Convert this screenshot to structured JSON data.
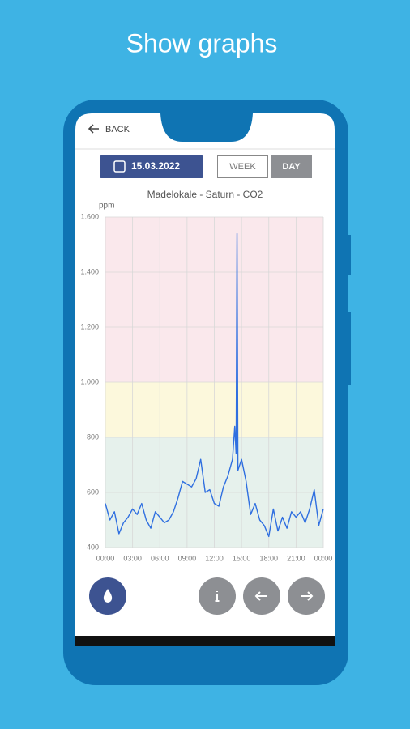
{
  "headline": "Show graphs",
  "app": {
    "back": "BACK",
    "date": "15.03.2022",
    "buttons": [
      "WEEK",
      "DAY"
    ]
  },
  "chart_data": {
    "type": "line",
    "title": "Madelokale - Saturn - CO2",
    "y_label": "ppm",
    "color": "#2f6fe0",
    "x": [
      0,
      0.5,
      1,
      1.5,
      2,
      2.5,
      3,
      3.5,
      4,
      4.5,
      5,
      5.5,
      6,
      6.5,
      7,
      7.5,
      8,
      8.5,
      9,
      9.5,
      10,
      10.5,
      11,
      11.5,
      12,
      12.5,
      13,
      13.5,
      14,
      14.25,
      14.4,
      14.5,
      14.6,
      15,
      15.5,
      16,
      16.5,
      17,
      17.5,
      18,
      18.5,
      19,
      19.5,
      20,
      20.5,
      21,
      21.5,
      22,
      22.5,
      23,
      23.5,
      24
    ],
    "values": [
      560,
      500,
      530,
      450,
      490,
      510,
      540,
      520,
      560,
      500,
      470,
      530,
      510,
      490,
      500,
      530,
      580,
      640,
      630,
      620,
      650,
      720,
      600,
      610,
      560,
      550,
      620,
      660,
      720,
      840,
      740,
      1540,
      680,
      720,
      640,
      520,
      560,
      500,
      480,
      440,
      540,
      460,
      510,
      470,
      530,
      510,
      530,
      490,
      540,
      610,
      480,
      540
    ],
    "xlim": [
      0,
      24
    ],
    "xticks": [
      {
        "value": 0,
        "label": "00:00"
      },
      {
        "value": 3,
        "label": "03:00"
      },
      {
        "value": 6,
        "label": "06:00"
      },
      {
        "value": 9,
        "label": "09:00"
      },
      {
        "value": 12,
        "label": "12:00"
      },
      {
        "value": 15,
        "label": "15:00"
      },
      {
        "value": 18,
        "label": "18:00"
      },
      {
        "value": 21,
        "label": "21:00"
      },
      {
        "value": 24,
        "label": "00:00"
      }
    ],
    "ylim": [
      400,
      1600
    ],
    "yticks": [
      400,
      600,
      800,
      {
        "value": 1000,
        "label": "1.000"
      },
      {
        "value": 1200,
        "label": "1.200"
      },
      {
        "value": 1400,
        "label": "1.400"
      },
      {
        "value": 1600,
        "label": "1.600"
      }
    ],
    "grid": true,
    "bands": [
      {
        "from": 400,
        "to": 800,
        "color": "#e6f1ec"
      },
      {
        "from": 800,
        "to": 1000,
        "color": "#fcf8dc"
      },
      {
        "from": 1000,
        "to": 1600,
        "color": "#fae8ec"
      }
    ]
  }
}
